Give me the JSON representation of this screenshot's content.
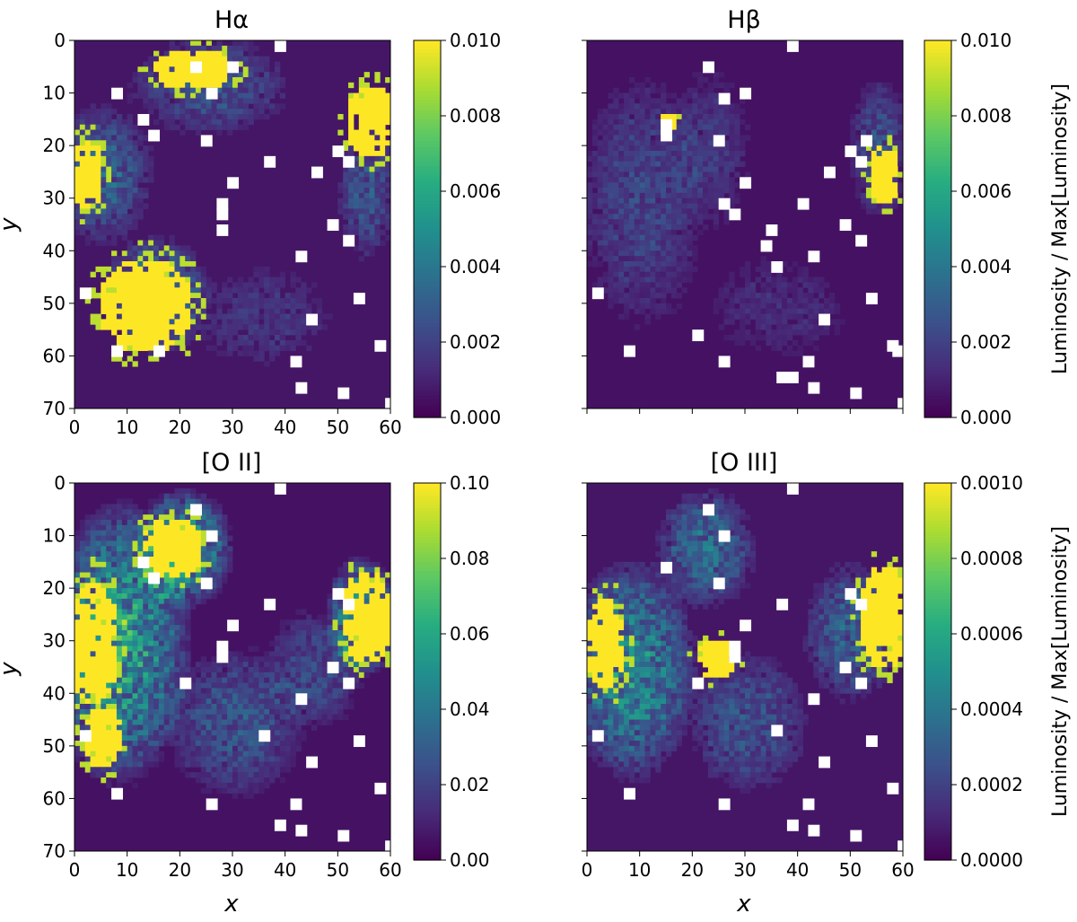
{
  "colors": {
    "colormap": [
      "#440154",
      "#472c7a",
      "#3b518b",
      "#2c718e",
      "#21908d",
      "#27ad81",
      "#5cc863",
      "#aadc32",
      "#fde725"
    ],
    "masked": "#ffffff",
    "axis": "#000000"
  },
  "shared": {
    "xlabel": "x",
    "ylabel": "y",
    "colorbar_label": "Luminosity / Max[Luminosity]"
  },
  "chart_data": [
    {
      "type": "heatmap",
      "title": "Hα",
      "xlim": [
        0,
        60
      ],
      "ylim": [
        70,
        0
      ],
      "xticks": [
        "0",
        "10",
        "20",
        "30",
        "40",
        "50",
        "60"
      ],
      "yticks": [
        "0",
        "10",
        "20",
        "30",
        "40",
        "50",
        "60",
        "70"
      ],
      "xlabel": "",
      "ylabel": "y",
      "colorbar": {
        "min": 0.0,
        "max": 0.01,
        "ticks": [
          "0.000",
          "0.002",
          "0.004",
          "0.006",
          "0.008",
          "0.010"
        ],
        "label": ""
      },
      "background_level": 0.0006,
      "regions": [
        {
          "x": 5,
          "y": 25,
          "rx": 10,
          "ry": 14,
          "level": 0.25
        },
        {
          "x": 25,
          "y": 8,
          "rx": 16,
          "ry": 10,
          "level": 0.2
        },
        {
          "x": 15,
          "y": 48,
          "rx": 11,
          "ry": 12,
          "level": 0.3
        },
        {
          "x": 55,
          "y": 28,
          "rx": 6,
          "ry": 14,
          "level": 0.2
        },
        {
          "x": 35,
          "y": 52,
          "rx": 14,
          "ry": 10,
          "level": 0.1
        }
      ],
      "saturated_regions": [
        {
          "x": 2,
          "y": 25,
          "rx": 3,
          "ry": 7
        },
        {
          "x": 13,
          "y": 50,
          "rx": 9,
          "ry": 9
        },
        {
          "x": 22,
          "y": 5,
          "rx": 8,
          "ry": 4
        },
        {
          "x": 56,
          "y": 15,
          "rx": 5,
          "ry": 7
        }
      ],
      "masked_pixels": [
        [
          7,
          9
        ],
        [
          12,
          14
        ],
        [
          14,
          17
        ],
        [
          22,
          4
        ],
        [
          25,
          9
        ],
        [
          24,
          18
        ],
        [
          27,
          30
        ],
        [
          27,
          32
        ],
        [
          36,
          22
        ],
        [
          29,
          26
        ],
        [
          38,
          0
        ],
        [
          42,
          40
        ],
        [
          48,
          34
        ],
        [
          51,
          37
        ],
        [
          57,
          57
        ],
        [
          59,
          68
        ],
        [
          53,
          48
        ],
        [
          49,
          20
        ],
        [
          51,
          22
        ],
        [
          41,
          60
        ],
        [
          50,
          66
        ],
        [
          44,
          52
        ],
        [
          29,
          4
        ],
        [
          7,
          58
        ],
        [
          15,
          58
        ],
        [
          1,
          47
        ],
        [
          27,
          35
        ],
        [
          45,
          24
        ],
        [
          42,
          65
        ]
      ]
    },
    {
      "type": "heatmap",
      "title": "Hβ",
      "xlim": [
        0,
        60
      ],
      "ylim": [
        70,
        0
      ],
      "xticks": [],
      "yticks": [],
      "xlabel": "",
      "ylabel": "",
      "colorbar": {
        "min": 0.0,
        "max": 0.01,
        "ticks": [
          "0.000",
          "0.002",
          "0.004",
          "0.006",
          "0.008",
          "0.010"
        ],
        "label": "Luminosity / Max[Luminosity]"
      },
      "background_level": 0.0005,
      "regions": [
        {
          "x": 10,
          "y": 30,
          "rx": 13,
          "ry": 25,
          "level": 0.16
        },
        {
          "x": 23,
          "y": 20,
          "rx": 8,
          "ry": 16,
          "level": 0.12
        },
        {
          "x": 36,
          "y": 50,
          "rx": 14,
          "ry": 10,
          "level": 0.08
        },
        {
          "x": 55,
          "y": 20,
          "rx": 6,
          "ry": 14,
          "level": 0.2
        }
      ],
      "saturated_regions": [
        {
          "x": 56,
          "y": 25,
          "rx": 3,
          "ry": 6
        },
        {
          "x": 15,
          "y": 15,
          "rx": 2,
          "ry": 2
        }
      ],
      "masked_pixels": [
        [
          22,
          4
        ],
        [
          25,
          10
        ],
        [
          29,
          9
        ],
        [
          24,
          18
        ],
        [
          14,
          15
        ],
        [
          14,
          17
        ],
        [
          25,
          30
        ],
        [
          27,
          32
        ],
        [
          29,
          26
        ],
        [
          38,
          0
        ],
        [
          42,
          40
        ],
        [
          48,
          34
        ],
        [
          51,
          37
        ],
        [
          57,
          57
        ],
        [
          59,
          68
        ],
        [
          53,
          48
        ],
        [
          49,
          20
        ],
        [
          51,
          22
        ],
        [
          50,
          66
        ],
        [
          44,
          52
        ],
        [
          41,
          60
        ],
        [
          1,
          47
        ],
        [
          7,
          58
        ],
        [
          20,
          55
        ],
        [
          25,
          60
        ],
        [
          35,
          42
        ],
        [
          33,
          38
        ],
        [
          34,
          35
        ],
        [
          40,
          30
        ],
        [
          45,
          24
        ],
        [
          52,
          18
        ],
        [
          42,
          65
        ],
        [
          38,
          63
        ],
        [
          36,
          63
        ],
        [
          58,
          58
        ]
      ]
    },
    {
      "type": "heatmap",
      "title": "[O II]",
      "xlim": [
        0,
        60
      ],
      "ylim": [
        70,
        0
      ],
      "xticks": [
        "0",
        "10",
        "20",
        "30",
        "40",
        "50",
        "60"
      ],
      "yticks": [
        "0",
        "10",
        "20",
        "30",
        "40",
        "50",
        "60",
        "70"
      ],
      "xlabel": "x",
      "ylabel": "y",
      "colorbar": {
        "min": 0.0,
        "max": 0.1,
        "ticks": [
          "0.00",
          "0.02",
          "0.04",
          "0.06",
          "0.08",
          "0.10"
        ],
        "label": ""
      },
      "background_level": 0.005,
      "regions": [
        {
          "x": 8,
          "y": 30,
          "rx": 14,
          "ry": 28,
          "level": 0.5
        },
        {
          "x": 20,
          "y": 12,
          "rx": 10,
          "ry": 12,
          "level": 0.45
        },
        {
          "x": 30,
          "y": 45,
          "rx": 14,
          "ry": 15,
          "level": 0.22
        },
        {
          "x": 45,
          "y": 35,
          "rx": 10,
          "ry": 12,
          "level": 0.18
        },
        {
          "x": 54,
          "y": 25,
          "rx": 7,
          "ry": 12,
          "level": 0.45
        }
      ],
      "saturated_regions": [
        {
          "x": 3,
          "y": 30,
          "rx": 5,
          "ry": 12
        },
        {
          "x": 55,
          "y": 25,
          "rx": 5,
          "ry": 9
        },
        {
          "x": 18,
          "y": 12,
          "rx": 6,
          "ry": 6
        },
        {
          "x": 5,
          "y": 48,
          "rx": 4,
          "ry": 6
        }
      ],
      "masked_pixels": [
        [
          22,
          4
        ],
        [
          25,
          9
        ],
        [
          14,
          17
        ],
        [
          12,
          14
        ],
        [
          24,
          18
        ],
        [
          27,
          30
        ],
        [
          27,
          32
        ],
        [
          29,
          26
        ],
        [
          36,
          22
        ],
        [
          38,
          0
        ],
        [
          42,
          40
        ],
        [
          48,
          34
        ],
        [
          51,
          37
        ],
        [
          57,
          57
        ],
        [
          59,
          68
        ],
        [
          53,
          48
        ],
        [
          49,
          20
        ],
        [
          51,
          22
        ],
        [
          50,
          66
        ],
        [
          44,
          52
        ],
        [
          41,
          60
        ],
        [
          1,
          47
        ],
        [
          7,
          58
        ],
        [
          20,
          37
        ],
        [
          25,
          60
        ],
        [
          35,
          47
        ],
        [
          42,
          65
        ],
        [
          38,
          64
        ]
      ]
    },
    {
      "type": "heatmap",
      "title": "[O III]",
      "xlim": [
        0,
        60
      ],
      "ylim": [
        70,
        0
      ],
      "xticks": [
        "0",
        "10",
        "20",
        "30",
        "40",
        "50",
        "60"
      ],
      "yticks": [],
      "xlabel": "x",
      "ylabel": "",
      "colorbar": {
        "min": 0.0,
        "max": 0.001,
        "ticks": [
          "0.0000",
          "0.0002",
          "0.0004",
          "0.0006",
          "0.0008",
          "0.0010"
        ],
        "label": "Luminosity / Max[Luminosity]"
      },
      "background_level": 6e-05,
      "regions": [
        {
          "x": 8,
          "y": 35,
          "rx": 13,
          "ry": 22,
          "level": 0.4
        },
        {
          "x": 22,
          "y": 12,
          "rx": 10,
          "ry": 12,
          "level": 0.3
        },
        {
          "x": 30,
          "y": 45,
          "rx": 12,
          "ry": 14,
          "level": 0.2
        },
        {
          "x": 50,
          "y": 28,
          "rx": 10,
          "ry": 14,
          "level": 0.25
        }
      ],
      "saturated_regions": [
        {
          "x": 3,
          "y": 30,
          "rx": 4,
          "ry": 9
        },
        {
          "x": 56,
          "y": 25,
          "rx": 5,
          "ry": 10
        },
        {
          "x": 24,
          "y": 33,
          "rx": 4,
          "ry": 4
        }
      ],
      "masked_pixels": [
        [
          22,
          4
        ],
        [
          25,
          9
        ],
        [
          24,
          18
        ],
        [
          29,
          26
        ],
        [
          36,
          22
        ],
        [
          38,
          0
        ],
        [
          42,
          40
        ],
        [
          48,
          34
        ],
        [
          51,
          37
        ],
        [
          57,
          57
        ],
        [
          59,
          68
        ],
        [
          53,
          48
        ],
        [
          49,
          20
        ],
        [
          51,
          22
        ],
        [
          50,
          66
        ],
        [
          44,
          52
        ],
        [
          41,
          60
        ],
        [
          1,
          47
        ],
        [
          7,
          58
        ],
        [
          20,
          37
        ],
        [
          25,
          60
        ],
        [
          27,
          30
        ],
        [
          27,
          32
        ],
        [
          35,
          46
        ],
        [
          42,
          65
        ],
        [
          38,
          64
        ],
        [
          14,
          15
        ]
      ]
    }
  ]
}
